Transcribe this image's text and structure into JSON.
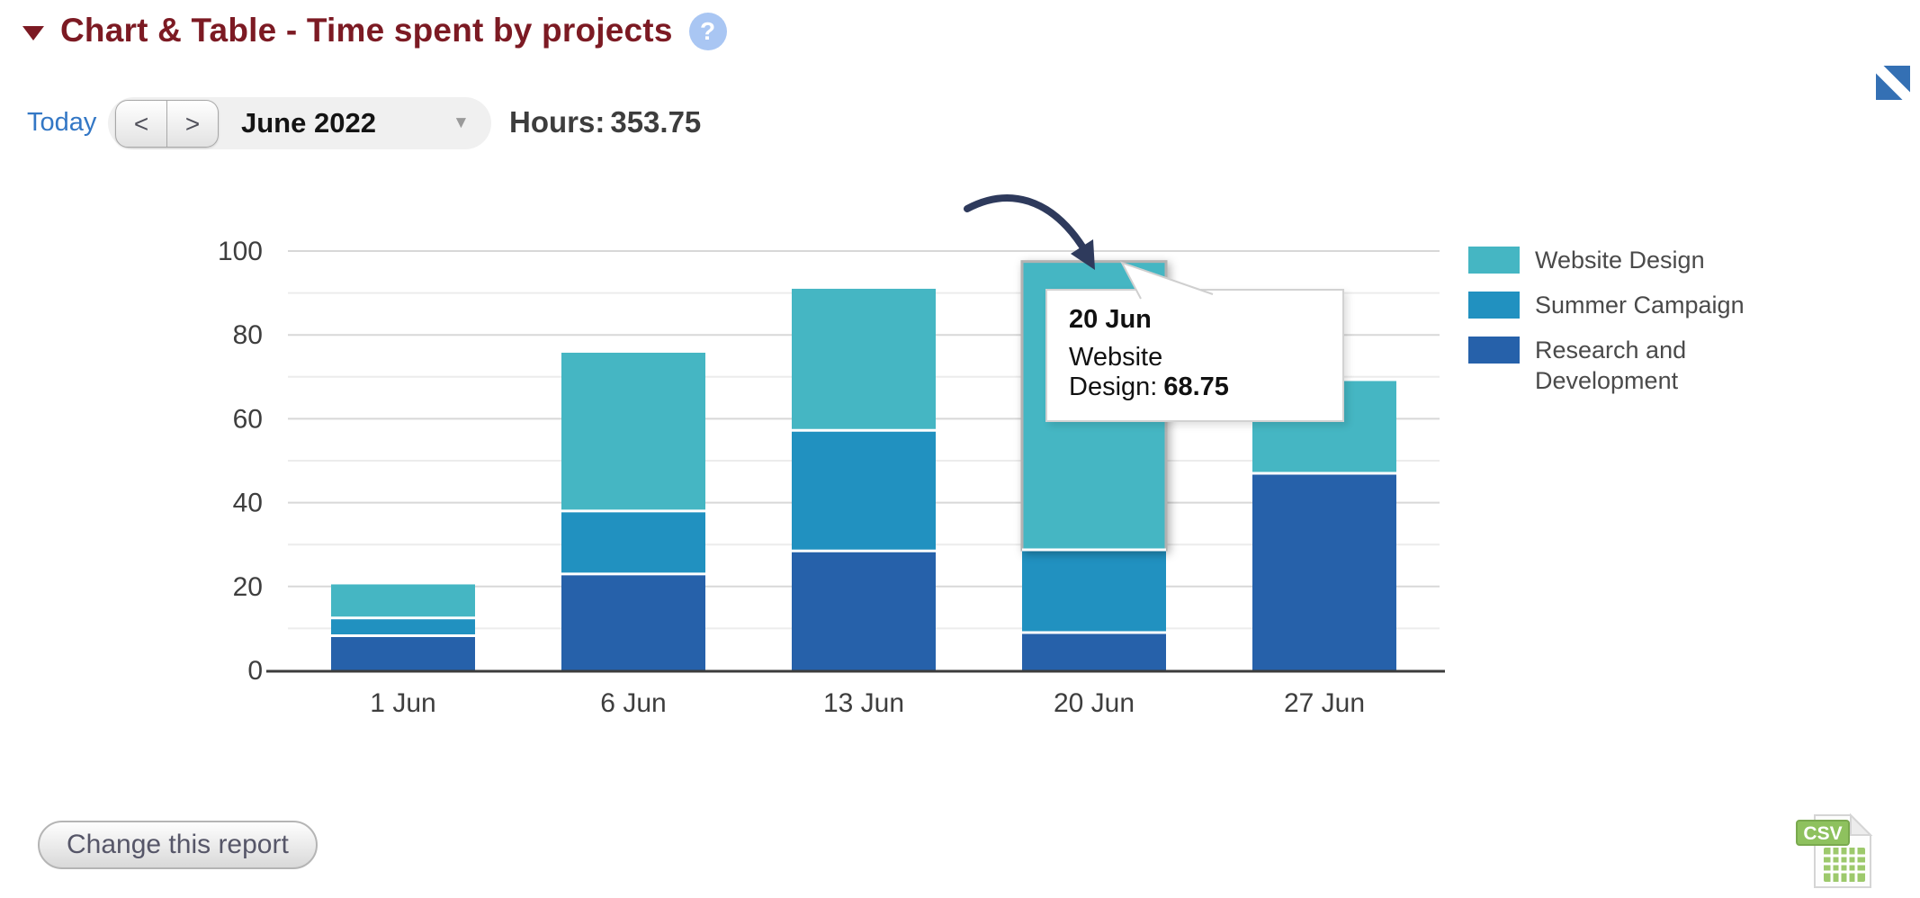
{
  "header": {
    "title": "Chart & Table - Time spent by projects",
    "help_glyph": "?"
  },
  "toolbar": {
    "today_label": "Today",
    "prev_label": "<",
    "next_label": ">",
    "period_value": "June 2022",
    "caret_glyph": "▼",
    "hours_label": "Hours:",
    "hours_value": "353.75"
  },
  "chart_data": {
    "type": "bar",
    "stacked": true,
    "total": 353.75,
    "categories": [
      "1 Jun",
      "6 Jun",
      "13 Jun",
      "20 Jun",
      "27 Jun"
    ],
    "series": [
      {
        "name": "Website Design",
        "color": "#45b6c3",
        "values": [
          8,
          37.75,
          33.75,
          68.75,
          22
        ]
      },
      {
        "name": "Summer Campaign",
        "color": "#2191c0",
        "values": [
          4.25,
          15,
          28.75,
          19.75,
          0
        ]
      },
      {
        "name": "Research and Development",
        "color": "#2661aa",
        "values": [
          8.25,
          23,
          28.5,
          9,
          47
        ]
      }
    ],
    "stack_order_bottom_to_top": [
      "Research and Development",
      "Summer Campaign",
      "Website Design"
    ],
    "ylim": [
      0,
      100
    ],
    "yticks": [
      0,
      20,
      40,
      60,
      80,
      100
    ],
    "grid_step": 10,
    "grid": true,
    "legend_position": "right",
    "highlighted": {
      "category": "20 Jun",
      "series": "Website Design"
    }
  },
  "tooltip": {
    "title": "20 Jun",
    "series_label": "Website Design:",
    "value": "68.75"
  },
  "footer": {
    "change_report_label": "Change this report",
    "csv_label": "CSV"
  },
  "colors": {
    "title_maroon": "#7c1a23",
    "link_blue": "#3377c5",
    "bar_teal": "#45b6c3",
    "bar_blue": "#2191c0",
    "bar_dark_blue": "#2661aa",
    "arrow_navy": "#2e3a5c",
    "axis": "#3c3c3c",
    "grid_major": "#d8d8d8",
    "grid_minor": "#ececec",
    "csv_green": "#8ec15e",
    "corner_icon_blue": "#3470b4"
  }
}
